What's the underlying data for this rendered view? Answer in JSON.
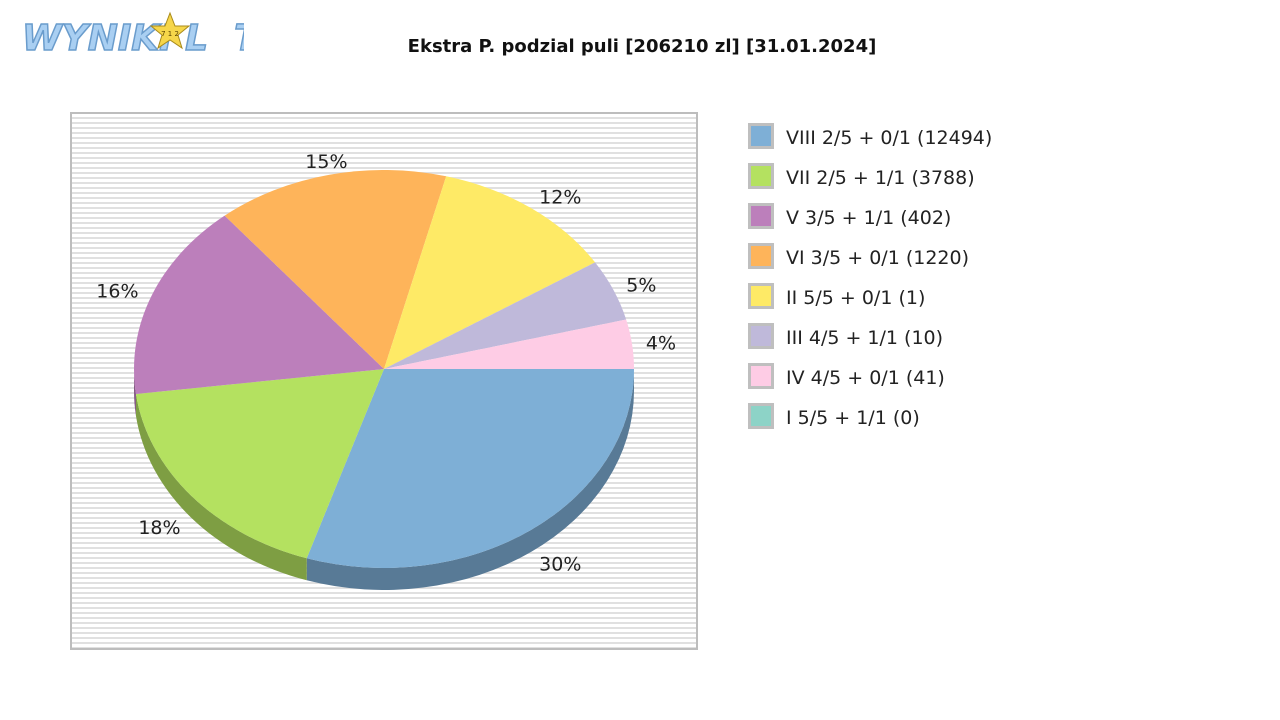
{
  "logo": {
    "text": "WYNIKI LOTTO",
    "star_text": "7 1 2"
  },
  "chart_data": {
    "type": "pie",
    "title": "Ekstra P. podzial puli [206210 zl] [31.01.2024]",
    "legend_position": "right",
    "slices": [
      {
        "label": "VIII 2/5 + 0/1 (12494)",
        "percent": 30,
        "pct_label": "30%",
        "color": "#7eafd6"
      },
      {
        "label": "VII 2/5 + 1/1 (3788)",
        "percent": 18,
        "pct_label": "18%",
        "color": "#b4e160"
      },
      {
        "label": "V 3/5 + 1/1 (402)",
        "percent": 16,
        "pct_label": "16%",
        "color": "#bc7fbb"
      },
      {
        "label": "VI 3/5 + 0/1 (1220)",
        "percent": 15,
        "pct_label": "15%",
        "color": "#feb45a"
      },
      {
        "label": "II 5/5 + 0/1 (1)",
        "percent": 12,
        "pct_label": "12%",
        "color": "#feea66"
      },
      {
        "label": "III 4/5 + 1/1 (10)",
        "percent": 5,
        "pct_label": "5%",
        "color": "#bfb9da"
      },
      {
        "label": "IV 4/5 + 0/1 (41)",
        "percent": 4,
        "pct_label": "4%",
        "color": "#fecce5"
      },
      {
        "label": "I 5/5 + 1/1 (0)",
        "percent": 0,
        "pct_label": "",
        "color": "#8dd3c7"
      }
    ]
  }
}
